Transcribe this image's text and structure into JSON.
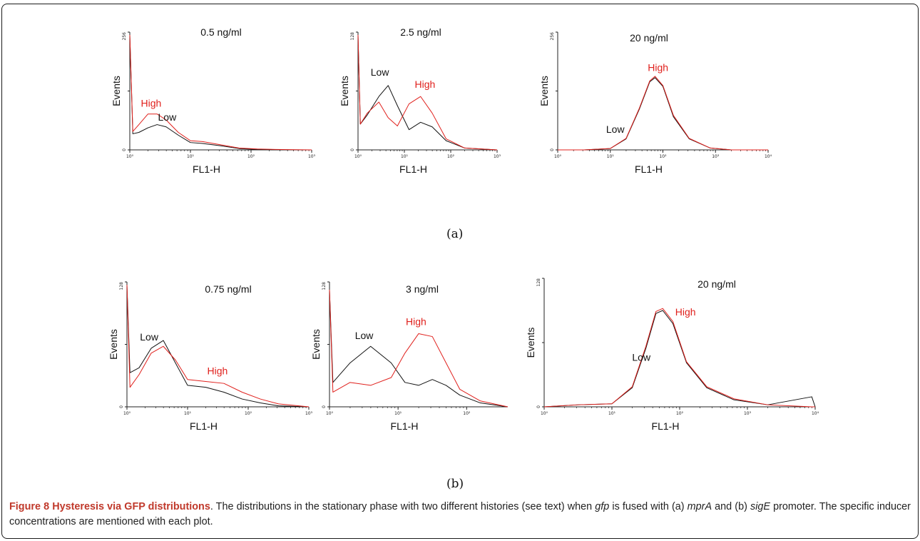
{
  "chart_data": [
    {
      "type": "line",
      "group": "a",
      "concentration": "0.5 ng/ml",
      "xlabel": "FL1-H",
      "ylabel": "Events",
      "ylim": [
        0,
        256
      ],
      "yticks": [
        "0",
        "256"
      ],
      "xlim": [
        0,
        3
      ],
      "xticks": [
        "10⁰",
        "10¹",
        "10²",
        "10³"
      ],
      "series": [
        {
          "name": "High",
          "color": "#e0201c",
          "x": [
            0,
            0.05,
            0.15,
            0.3,
            0.45,
            0.6,
            0.8,
            1.0,
            1.2,
            1.5,
            1.8,
            2.1,
            2.4,
            3
          ],
          "y": [
            250,
            40,
            55,
            78,
            78,
            65,
            38,
            20,
            18,
            11,
            4,
            2,
            1,
            0
          ]
        },
        {
          "name": "Low",
          "color": "#111111",
          "x": [
            0,
            0.05,
            0.15,
            0.3,
            0.45,
            0.6,
            0.8,
            1.0,
            1.2,
            1.5,
            1.8,
            2.1,
            2.4,
            3
          ],
          "y": [
            250,
            35,
            38,
            48,
            55,
            50,
            32,
            16,
            14,
            9,
            3,
            1,
            0,
            0
          ]
        }
      ]
    },
    {
      "type": "line",
      "group": "a",
      "concentration": "2.5 ng/ml",
      "xlabel": "FL1-H",
      "ylabel": "Events",
      "ylim": [
        0,
        128
      ],
      "yticks": [
        "0",
        "128"
      ],
      "xlim": [
        0,
        3
      ],
      "xticks": [
        "10⁰",
        "10¹",
        "10²",
        "10³"
      ],
      "series": [
        {
          "name": "High",
          "color": "#e0201c",
          "x": [
            0,
            0.05,
            0.2,
            0.45,
            0.65,
            0.85,
            1.1,
            1.35,
            1.6,
            1.9,
            2.3,
            3
          ],
          "y": [
            125,
            28,
            40,
            52,
            35,
            26,
            50,
            58,
            40,
            12,
            2,
            0
          ]
        },
        {
          "name": "Low",
          "color": "#111111",
          "x": [
            0,
            0.05,
            0.2,
            0.45,
            0.65,
            0.85,
            1.1,
            1.35,
            1.6,
            1.9,
            2.3,
            3
          ],
          "y": [
            125,
            28,
            38,
            58,
            70,
            48,
            22,
            30,
            25,
            10,
            2,
            0
          ]
        }
      ]
    },
    {
      "type": "line",
      "group": "a",
      "concentration": "20 ng/ml",
      "xlabel": "FL1-H",
      "ylabel": "Events",
      "ylim": [
        0,
        256
      ],
      "yticks": [
        "0",
        "256"
      ],
      "xlim": [
        0,
        4
      ],
      "xticks": [
        "10⁰",
        "10¹",
        "10²",
        "10³",
        "10⁴"
      ],
      "series": [
        {
          "name": "High",
          "color": "#e0201c",
          "x": [
            0,
            0.5,
            1.0,
            1.3,
            1.55,
            1.75,
            1.85,
            2.0,
            2.2,
            2.5,
            2.9,
            3.3,
            4
          ],
          "y": [
            0,
            0,
            3,
            25,
            90,
            150,
            160,
            140,
            75,
            25,
            4,
            0,
            0
          ]
        },
        {
          "name": "Low",
          "color": "#111111",
          "x": [
            0,
            0.5,
            1.0,
            1.3,
            1.55,
            1.75,
            1.85,
            2.0,
            2.2,
            2.5,
            2.9,
            3.3,
            4
          ],
          "y": [
            0,
            0,
            3,
            24,
            88,
            148,
            157,
            138,
            72,
            24,
            4,
            0,
            0
          ]
        }
      ]
    },
    {
      "type": "line",
      "group": "b",
      "concentration": "0.75 ng/ml",
      "xlabel": "FL1-H",
      "ylabel": "Events",
      "ylim": [
        0,
        128
      ],
      "yticks": [
        "0",
        "128"
      ],
      "xlim": [
        0,
        3
      ],
      "xticks": [
        "10⁰",
        "10¹",
        "10²",
        "10³"
      ],
      "series": [
        {
          "name": "High",
          "color": "#e0201c",
          "x": [
            0,
            0.05,
            0.2,
            0.4,
            0.6,
            0.8,
            1.0,
            1.3,
            1.6,
            1.9,
            2.2,
            2.5,
            3
          ],
          "y": [
            125,
            20,
            33,
            55,
            62,
            48,
            28,
            26,
            24,
            15,
            8,
            3,
            0
          ]
        },
        {
          "name": "Low",
          "color": "#111111",
          "x": [
            0,
            0.05,
            0.2,
            0.4,
            0.6,
            0.8,
            1.0,
            1.3,
            1.6,
            1.9,
            2.2,
            2.5,
            3
          ],
          "y": [
            125,
            35,
            40,
            60,
            68,
            45,
            22,
            20,
            15,
            8,
            4,
            1,
            0
          ]
        }
      ]
    },
    {
      "type": "line",
      "group": "b",
      "concentration": "3 ng/ml",
      "xlabel": "FL1-H",
      "ylabel": "Events",
      "ylim": [
        0,
        128
      ],
      "yticks": [
        "0",
        "128"
      ],
      "xlim": [
        0,
        2.6
      ],
      "xticks": [
        "10⁰",
        "10¹",
        "10²"
      ],
      "series": [
        {
          "name": "High",
          "color": "#e0201c",
          "x": [
            0,
            0.05,
            0.3,
            0.6,
            0.9,
            1.1,
            1.3,
            1.5,
            1.7,
            1.9,
            2.2,
            2.6
          ],
          "y": [
            120,
            15,
            25,
            22,
            30,
            55,
            75,
            72,
            45,
            18,
            6,
            0
          ]
        },
        {
          "name": "Low",
          "color": "#111111",
          "x": [
            0,
            0.05,
            0.3,
            0.6,
            0.9,
            1.1,
            1.3,
            1.5,
            1.7,
            1.9,
            2.2,
            2.6
          ],
          "y": [
            120,
            25,
            45,
            62,
            45,
            25,
            22,
            28,
            22,
            12,
            4,
            0
          ]
        }
      ]
    },
    {
      "type": "line",
      "group": "b",
      "concentration": "20 ng/ml",
      "xlabel": "FL1-H",
      "ylabel": "Events",
      "ylim": [
        0,
        128
      ],
      "yticks": [
        "0",
        "128"
      ],
      "xlim": [
        0,
        4
      ],
      "xticks": [
        "10⁰",
        "10¹",
        "10²",
        "10³",
        "10⁴"
      ],
      "series": [
        {
          "name": "High",
          "color": "#e0201c",
          "x": [
            0,
            0.5,
            1.0,
            1.3,
            1.5,
            1.65,
            1.75,
            1.9,
            2.1,
            2.4,
            2.8,
            3.3,
            3.95,
            4
          ],
          "y": [
            0,
            2,
            3,
            20,
            60,
            95,
            98,
            85,
            45,
            20,
            8,
            2,
            0,
            0
          ]
        },
        {
          "name": "Low",
          "color": "#111111",
          "x": [
            0,
            0.5,
            1.0,
            1.3,
            1.5,
            1.65,
            1.75,
            1.9,
            2.1,
            2.4,
            2.8,
            3.3,
            3.95,
            4
          ],
          "y": [
            0,
            2,
            3,
            19,
            58,
            93,
            96,
            83,
            44,
            19,
            7,
            2,
            10,
            0
          ]
        }
      ]
    }
  ],
  "labels": {
    "panels": [
      {
        "low": "Low",
        "high": "High"
      },
      {
        "low": "Low",
        "high": "High"
      },
      {
        "low": "Low",
        "high": "High"
      },
      {
        "low": "Low",
        "high": "High"
      },
      {
        "low": "Low",
        "high": "High"
      },
      {
        "low": "Low",
        "high": "High"
      }
    ]
  },
  "subfigure_labels": {
    "a": "(a)",
    "b": "(b)"
  },
  "caption": {
    "title": "Figure 8 Hysteresis via GFP distributions",
    "text_1": ". The distributions in the stationary phase with two different histories (see text) when ",
    "gene": "gfp",
    "text_2": " is fused with (a) ",
    "promoter_a": "mprA",
    "text_3": " and (b) ",
    "promoter_b": "sigE",
    "text_4": " promoter. The specific inducer concentrations are mentioned with each plot."
  }
}
